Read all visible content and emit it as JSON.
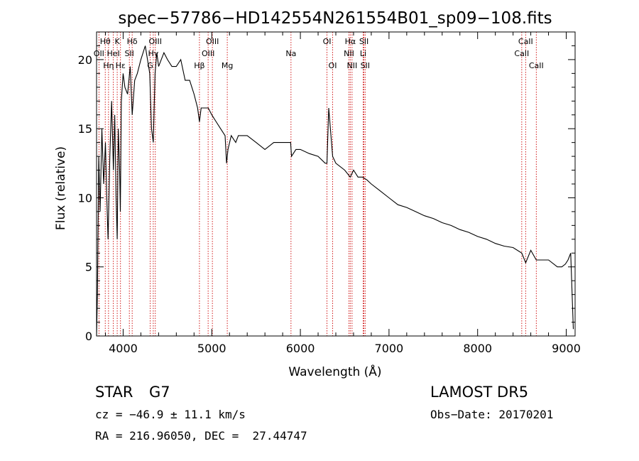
{
  "chart_data": {
    "type": "line",
    "title": "spec−57786−HD142554N261554B01_sp09−108.fits",
    "xlabel": "Wavelength (Å)",
    "ylabel": "Flux (relative)",
    "xlim": [
      3700,
      9100
    ],
    "ylim": [
      0,
      22
    ],
    "xticks": [
      4000,
      5000,
      6000,
      7000,
      8000,
      9000
    ],
    "yticks": [
      0,
      5,
      10,
      15,
      20
    ],
    "grid": false,
    "line_color": "#000000",
    "marker_color": "#cc0000",
    "series": [
      {
        "x": [
          3700,
          3710,
          3725,
          3740,
          3760,
          3780,
          3800,
          3815,
          3830,
          3850,
          3870,
          3890,
          3905,
          3920,
          3933,
          3945,
          3960,
          3968,
          3980,
          4000,
          4020,
          4050,
          4080,
          4102,
          4130,
          4160,
          4200,
          4250,
          4300,
          4320,
          4340,
          4360,
          4380,
          4400,
          4430,
          4460,
          4500,
          4550,
          4600,
          4650,
          4700,
          4750,
          4800,
          4840,
          4861,
          4880,
          4920,
          4960,
          5000,
          5050,
          5100,
          5150,
          5167,
          5183,
          5220,
          5270,
          5300,
          5400,
          5500,
          5600,
          5700,
          5800,
          5890,
          5900,
          5950,
          6000,
          6100,
          6200,
          6280,
          6300,
          6320,
          6364,
          6400,
          6500,
          6563,
          6600,
          6650,
          6700,
          6750,
          6800,
          6900,
          7000,
          7100,
          7200,
          7300,
          7400,
          7500,
          7600,
          7700,
          7800,
          7900,
          8000,
          8100,
          8200,
          8300,
          8400,
          8498,
          8542,
          8600,
          8662,
          8700,
          8800,
          8900,
          8950,
          8990,
          9020,
          9050,
          9080
        ],
        "y": [
          0,
          3,
          13,
          9,
          15,
          11,
          14,
          10,
          7,
          13,
          17,
          12,
          16,
          10,
          7,
          15,
          12,
          9,
          17,
          19,
          18,
          17.5,
          19.5,
          16,
          18.5,
          19,
          20,
          21,
          19,
          15,
          14,
          19,
          20.5,
          19.5,
          20,
          20.5,
          20,
          19.5,
          19.5,
          20,
          18.5,
          18.5,
          17.5,
          16.5,
          15.5,
          16.5,
          16.5,
          16.5,
          16,
          15.5,
          15,
          14.5,
          12.5,
          13.5,
          14.5,
          14,
          14.5,
          14.5,
          14,
          13.5,
          14,
          14,
          14,
          13,
          13.5,
          13.5,
          13.2,
          13,
          12.5,
          12.5,
          16.5,
          13,
          12.5,
          12,
          11.5,
          12,
          11.5,
          11.5,
          11.3,
          11,
          10.5,
          10,
          9.5,
          9.3,
          9,
          8.7,
          8.5,
          8.2,
          8,
          7.7,
          7.5,
          7.2,
          7,
          6.7,
          6.5,
          6.4,
          6,
          5.3,
          6.2,
          5.5,
          5.5,
          5.5,
          5,
          5,
          5.2,
          5.5,
          6,
          0.5
        ]
      }
    ],
    "lines": [
      {
        "label": "Hθ",
        "x": 3798,
        "row": 1
      },
      {
        "label": "OII",
        "x": 3727,
        "row": 2
      },
      {
        "label": "Hη",
        "x": 3835,
        "row": 3
      },
      {
        "label": "K",
        "x": 3933,
        "row": 1
      },
      {
        "label": "HeI",
        "x": 3889,
        "row": 2
      },
      {
        "label": "Hε",
        "x": 3970,
        "row": 3
      },
      {
        "label": "SII",
        "x": 4070,
        "row": 2
      },
      {
        "label": "Hδ",
        "x": 4102,
        "row": 1
      },
      {
        "label": "OIII",
        "x": 4363,
        "row": 1
      },
      {
        "label": "Hγ",
        "x": 4340,
        "row": 2
      },
      {
        "label": "G",
        "x": 4305,
        "row": 3
      },
      {
        "label": "Hβ",
        "x": 4861,
        "row": 3
      },
      {
        "label": "OIII",
        "x": 4959,
        "row": 2
      },
      {
        "label": "OIII",
        "x": 5007,
        "row": 1
      },
      {
        "label": "Mg",
        "x": 5175,
        "row": 3
      },
      {
        "label": "Na",
        "x": 5894,
        "row": 2
      },
      {
        "label": "OI",
        "x": 6300,
        "row": 1
      },
      {
        "label": "OI",
        "x": 6364,
        "row": 3
      },
      {
        "label": "NII",
        "x": 6548,
        "row": 2
      },
      {
        "label": "Hα",
        "x": 6563,
        "row": 1
      },
      {
        "label": "NII",
        "x": 6583,
        "row": 3
      },
      {
        "label": "Li",
        "x": 6708,
        "row": 2
      },
      {
        "label": "SII",
        "x": 6717,
        "row": 1
      },
      {
        "label": "SII",
        "x": 6731,
        "row": 3
      },
      {
        "label": "CaII",
        "x": 8498,
        "row": 2
      },
      {
        "label": "CaII",
        "x": 8542,
        "row": 1
      },
      {
        "label": "CaII",
        "x": 8662,
        "row": 3
      }
    ]
  },
  "info": {
    "class_label": "STAR",
    "subclass_label": "G7",
    "survey": "LAMOST DR5",
    "velocity": "cz = −46.9 ± 11.1 km/s",
    "obs_date": "Obs−Date: 20170201",
    "coords": "RA = 216.96050, DEC =  27.44747"
  }
}
